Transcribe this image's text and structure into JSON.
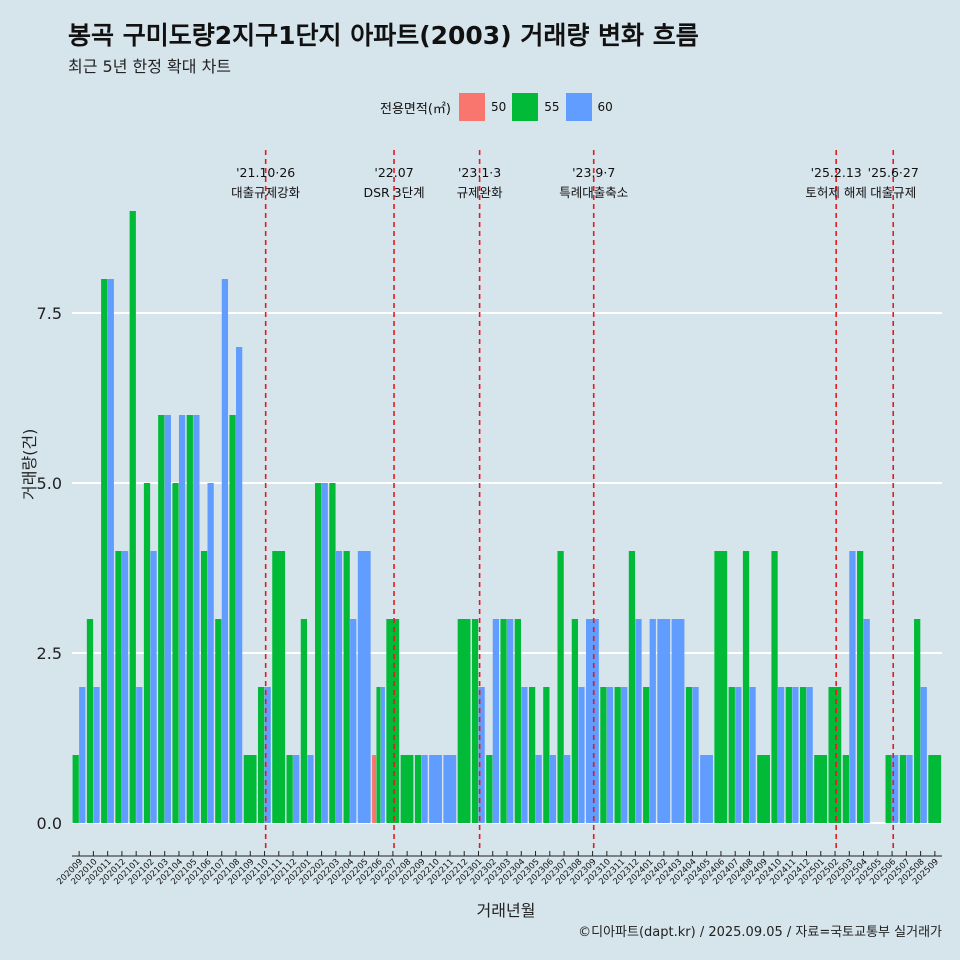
{
  "title": "봉곡 구미도량2지구1단지 아파트(2003) 거래량 변화 흐름",
  "subtitle": "최근 5년 한정 확대 차트",
  "caption": "©디아파트(dapt.kr) / 2025.09.05 / 자료=국토교통부 실거래가",
  "colors": {
    "50": "#f8766d",
    "55": "#00ba38",
    "60": "#619cff",
    "background": "#d6e4ec",
    "grid": "#ffffff",
    "event_line": "#e41a1c"
  },
  "chart_data": {
    "type": "bar",
    "title": "봉곡 구미도량2지구1단지 아파트(2003) 거래량 변화 흐름",
    "subtitle": "최근 5년 한정 확대 차트",
    "xlabel": "거래년월",
    "ylabel": "거래량(건)",
    "ylim": [
      0,
      9
    ],
    "yticks": [
      0.0,
      2.5,
      5.0,
      7.5
    ],
    "grid": "horizontal",
    "legend": {
      "title": "전용면적(㎡)",
      "position": "top",
      "entries": [
        "50",
        "55",
        "60"
      ]
    },
    "categories": [
      "202009",
      "202010",
      "202011",
      "202012",
      "202101",
      "202102",
      "202103",
      "202104",
      "202105",
      "202106",
      "202107",
      "202108",
      "202109",
      "202110",
      "202111",
      "202112",
      "202201",
      "202202",
      "202203",
      "202204",
      "202205",
      "202206",
      "202207",
      "202208",
      "202209",
      "202210",
      "202211",
      "202212",
      "202301",
      "202302",
      "202303",
      "202304",
      "202305",
      "202306",
      "202307",
      "202308",
      "202309",
      "202310",
      "202311",
      "202312",
      "202401",
      "202402",
      "202403",
      "202404",
      "202405",
      "202406",
      "202407",
      "202408",
      "202409",
      "202410",
      "202411",
      "202412",
      "202501",
      "202502",
      "202503",
      "202504",
      "202505",
      "202506",
      "202507",
      "202508",
      "202509"
    ],
    "series": [
      {
        "name": "50",
        "values": [
          0,
          0,
          0,
          0,
          0,
          0,
          0,
          0,
          0,
          0,
          0,
          0,
          0,
          0,
          0,
          0,
          0,
          0,
          0,
          0,
          0,
          1,
          0,
          0,
          0,
          0,
          0,
          0,
          0,
          0,
          0,
          0,
          0,
          0,
          0,
          0,
          0,
          0,
          0,
          0,
          0,
          0,
          0,
          0,
          0,
          0,
          0,
          0,
          0,
          0,
          0,
          0,
          0,
          0,
          0,
          0,
          0,
          0,
          0,
          0,
          0
        ]
      },
      {
        "name": "55",
        "values": [
          1,
          3,
          8,
          4,
          9,
          5,
          6,
          5,
          6,
          4,
          3,
          6,
          1,
          2,
          4,
          1,
          3,
          5,
          5,
          4,
          0,
          2,
          3,
          1,
          1,
          0,
          0,
          3,
          3,
          1,
          3,
          3,
          2,
          2,
          4,
          3,
          0,
          2,
          2,
          4,
          2,
          0,
          0,
          2,
          0,
          4,
          2,
          4,
          1,
          4,
          2,
          2,
          1,
          2,
          1,
          4,
          0,
          1,
          1,
          3,
          1
        ]
      },
      {
        "name": "60",
        "values": [
          2,
          2,
          8,
          4,
          2,
          4,
          6,
          6,
          6,
          5,
          8,
          7,
          0,
          2,
          0,
          1,
          1,
          5,
          4,
          3,
          4,
          2,
          0,
          0,
          1,
          1,
          1,
          0,
          2,
          3,
          3,
          2,
          1,
          1,
          1,
          2,
          3,
          2,
          2,
          3,
          3,
          3,
          3,
          2,
          1,
          0,
          2,
          2,
          0,
          2,
          2,
          2,
          0,
          0,
          4,
          3,
          0,
          1,
          1,
          2,
          0
        ]
      }
    ],
    "events": [
      {
        "date": "202110",
        "label1": "'21.10·26",
        "label2": "대출규제강화"
      },
      {
        "date": "202207",
        "label1": "'22.07",
        "label2": "DSR 3단계"
      },
      {
        "date": "202301",
        "label1": "'23.1·3",
        "label2": "규제완화"
      },
      {
        "date": "202309",
        "label1": "'23.9·7",
        "label2": "특례대출축소"
      },
      {
        "date": "202502",
        "label1": "'25.2.13",
        "label2": "토허제 해제"
      },
      {
        "date": "202506",
        "label1": "'25.6·27",
        "label2": "대출규제"
      }
    ]
  }
}
